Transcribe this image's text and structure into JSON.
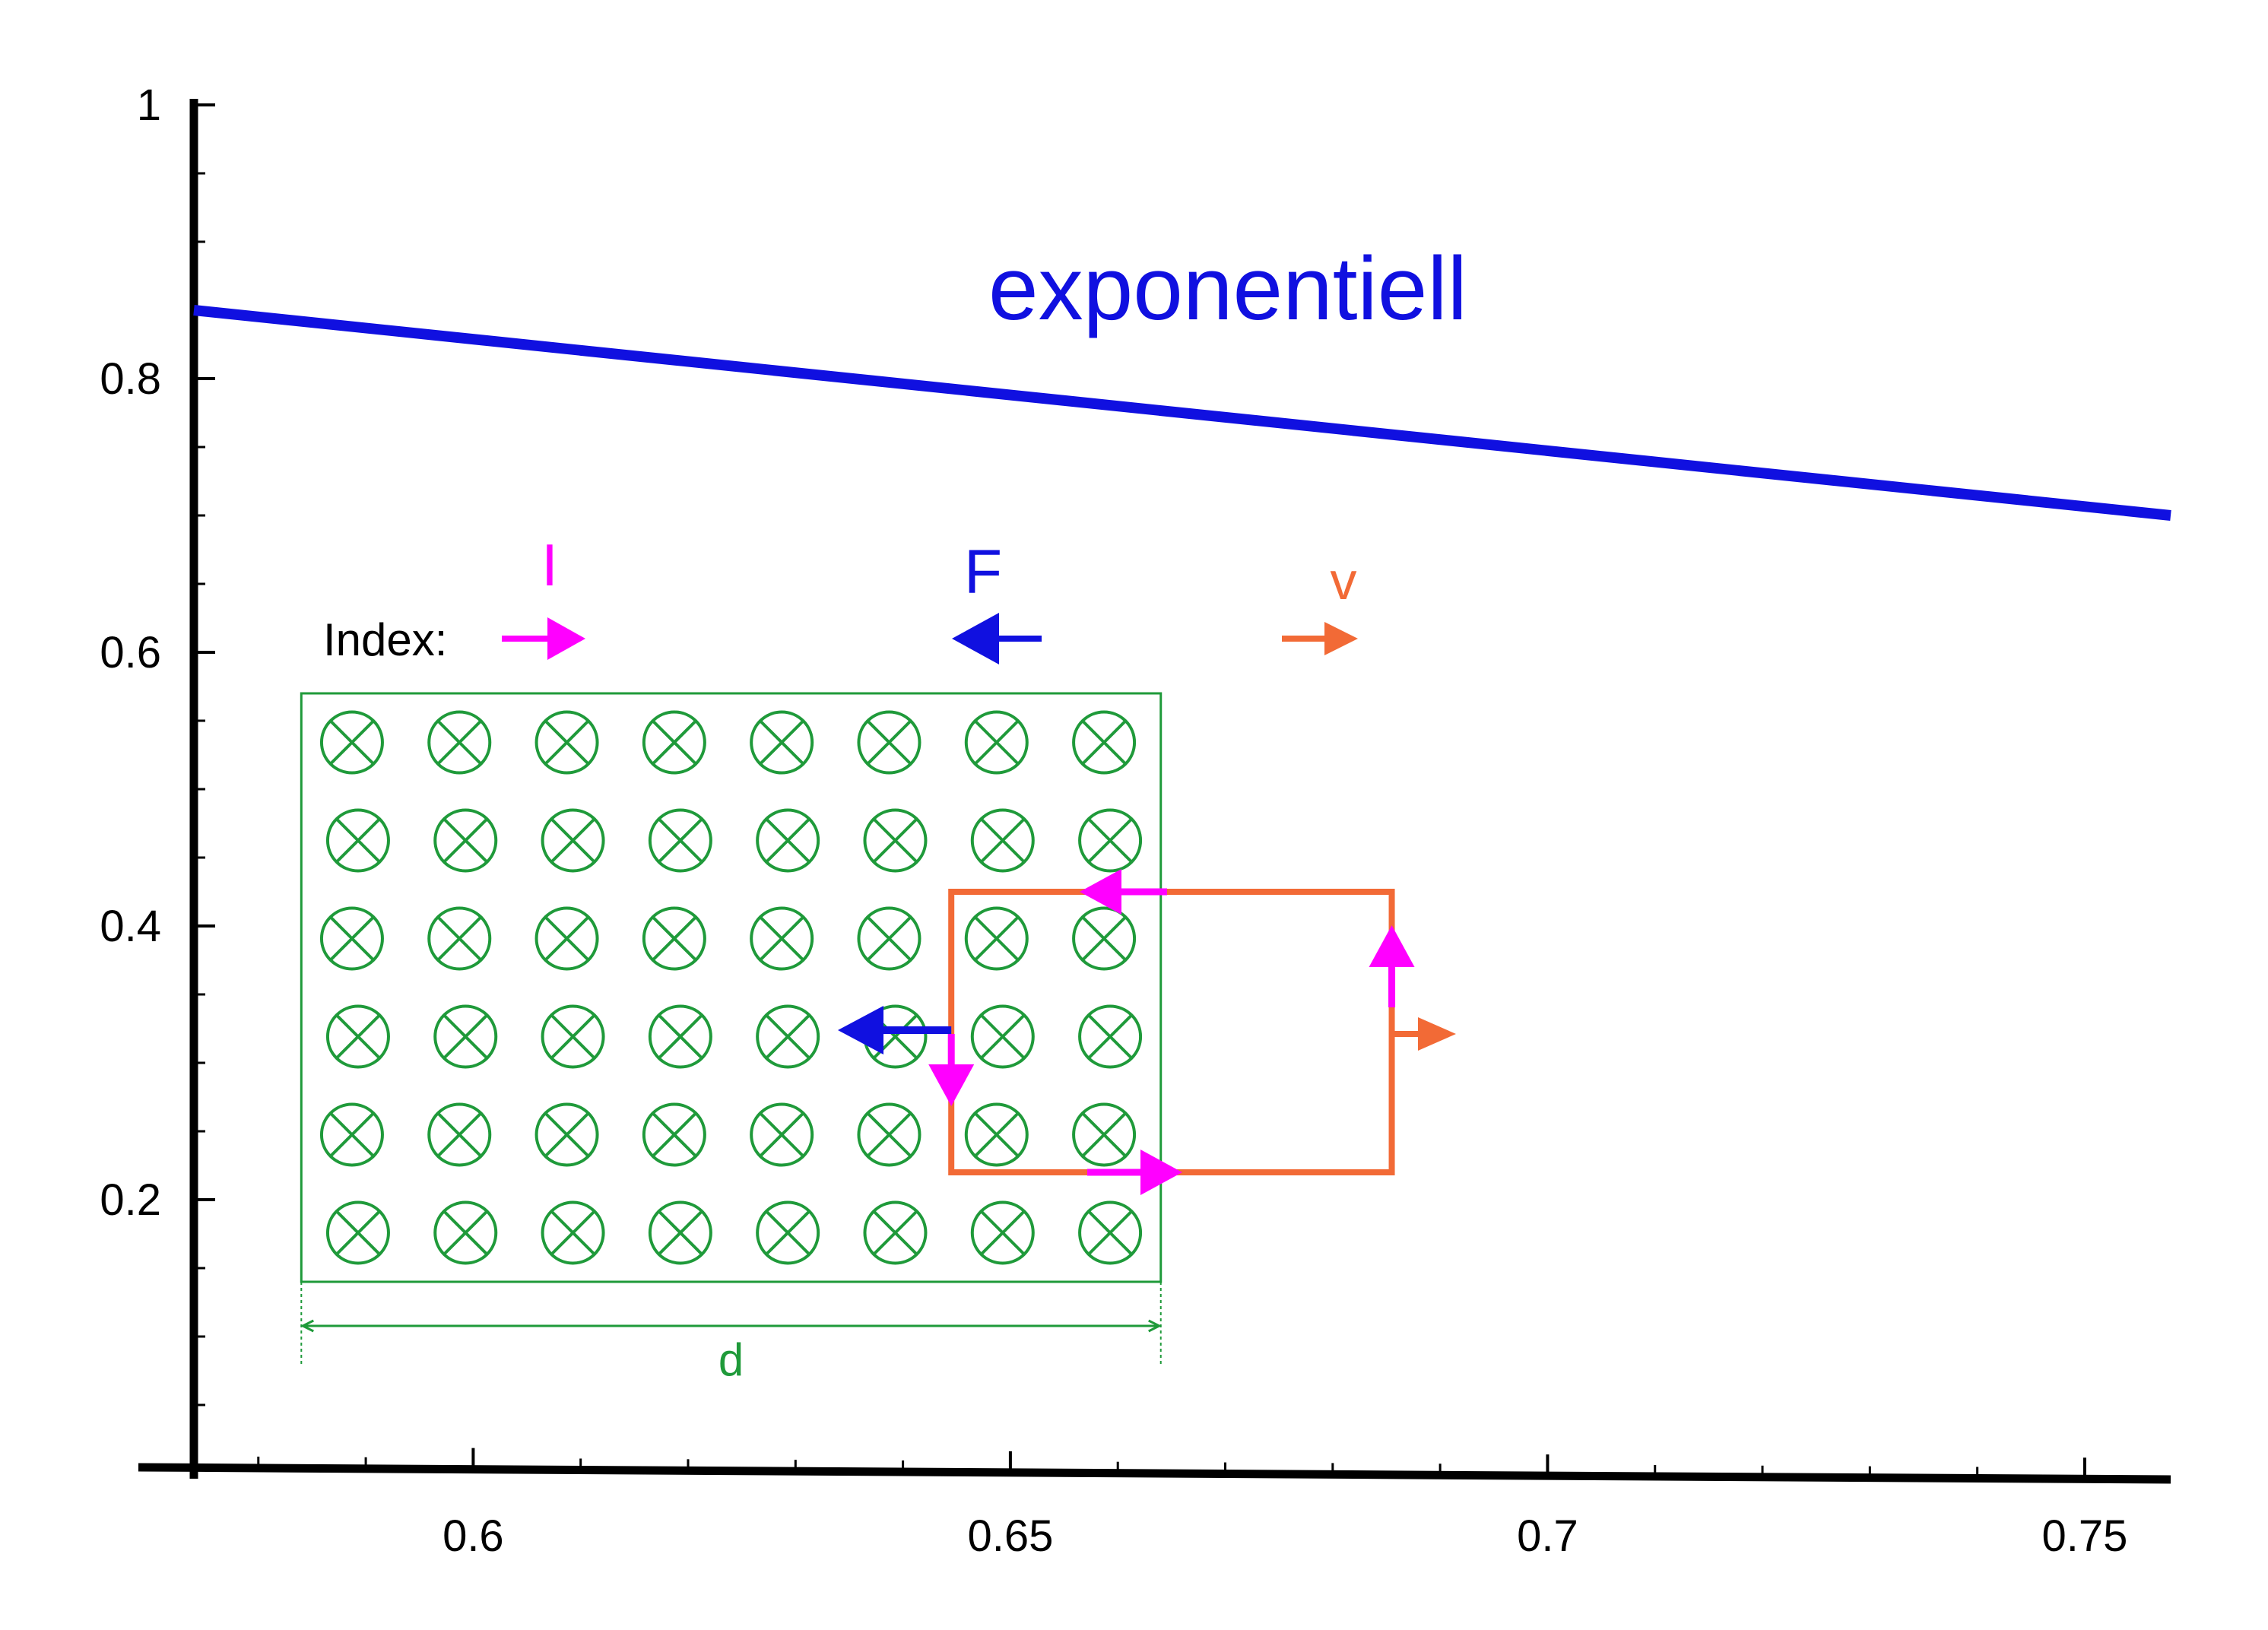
{
  "chart_data": {
    "type": "line",
    "title": "",
    "xlabel": "",
    "ylabel": "",
    "xlim": [
      0.574,
      0.758
    ],
    "ylim": [
      0,
      1
    ],
    "x_ticks": [
      {
        "value": 0.6,
        "label": "0.6"
      },
      {
        "value": 0.65,
        "label": "0.65"
      },
      {
        "value": 0.7,
        "label": "0.7"
      },
      {
        "value": 0.75,
        "label": "0.75"
      }
    ],
    "y_ticks": [
      {
        "value": 0.2,
        "label": "0.2"
      },
      {
        "value": 0.4,
        "label": "0.4"
      },
      {
        "value": 0.6,
        "label": "0.6"
      },
      {
        "value": 0.8,
        "label": "0.8"
      },
      {
        "value": 1,
        "label": "1"
      }
    ],
    "x_minor_step": 0.01,
    "y_minor_step": 0.05,
    "grid": false,
    "series": [
      {
        "name": "exponentiell",
        "color": "#1010e0",
        "x": [
          0.574,
          0.758
        ],
        "y": [
          0.85,
          0.7
        ]
      }
    ]
  },
  "diagram": {
    "legend_prefix": "Index:",
    "legend": [
      {
        "symbol": "I",
        "color": "#ff00ff",
        "direction": "right"
      },
      {
        "symbol": "F",
        "color": "#1010e0",
        "direction": "left"
      },
      {
        "symbol": "v",
        "color": "#f26a36",
        "direction": "right"
      }
    ],
    "field": {
      "color": "#1f9a3a",
      "symbol": "field-into-page",
      "rows": 6,
      "columns": 8,
      "x_range": [
        0.584,
        0.664
      ],
      "y_range": [
        0.14,
        0.57
      ]
    },
    "dimension_label": "d",
    "loop": {
      "color": "#f26a36",
      "x_range": [
        0.6445,
        0.6855
      ],
      "y_range": [
        0.22,
        0.425
      ]
    },
    "colors": {
      "current": "#ff00ff",
      "force": "#1010e0",
      "velocity": "#f26a36",
      "field": "#1f9a3a",
      "axis": "#000000"
    }
  }
}
